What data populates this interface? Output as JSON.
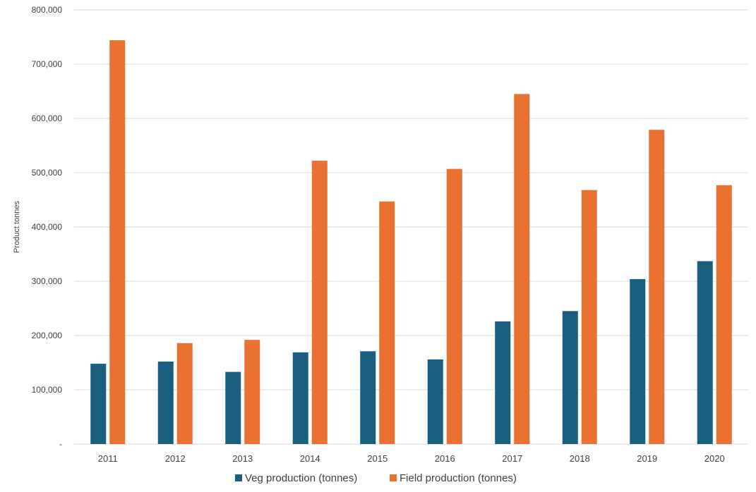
{
  "chart_data": {
    "type": "bar",
    "title": "",
    "xlabel": "",
    "ylabel": "Product tonnes",
    "ylim": [
      0,
      800000
    ],
    "yticks": [
      0,
      100000,
      200000,
      300000,
      400000,
      500000,
      600000,
      700000,
      800000
    ],
    "ytick_labels": [
      "-",
      "100,000",
      "200,000",
      "300,000",
      "400,000",
      "500,000",
      "600,000",
      "700,000",
      "800,000"
    ],
    "categories": [
      "2011",
      "2012",
      "2013",
      "2014",
      "2015",
      "2016",
      "2017",
      "2018",
      "2019",
      "2020"
    ],
    "series": [
      {
        "name": "Veg production (tonnes)",
        "color": "#1a5e80",
        "values": [
          148000,
          152000,
          133000,
          169000,
          171000,
          156000,
          226000,
          245000,
          304000,
          337000
        ]
      },
      {
        "name": "Field production (tonnes)",
        "color": "#e97132",
        "values": [
          744000,
          186000,
          192000,
          522000,
          447000,
          507000,
          645000,
          468000,
          579000,
          477000
        ]
      }
    ],
    "grid": true,
    "legend_position": "bottom"
  }
}
